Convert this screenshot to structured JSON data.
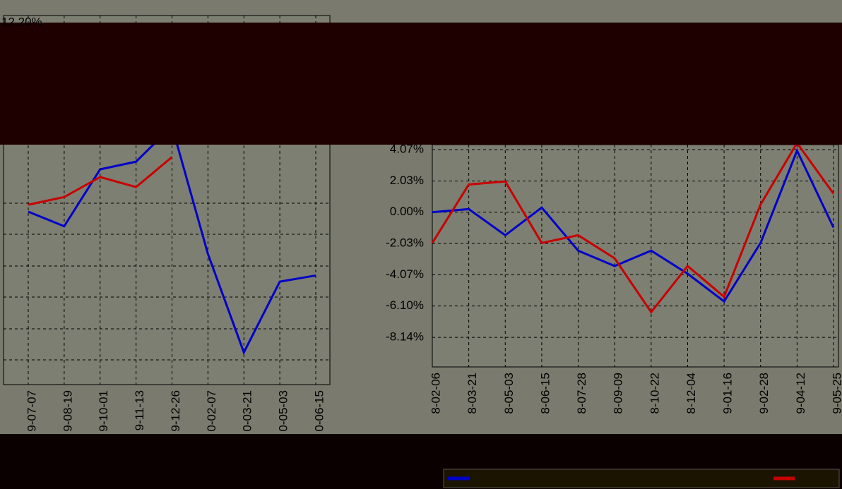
{
  "chart_data": [
    {
      "type": "line",
      "categories": [
        "9-07-07",
        "9-08-19",
        "9-10-01",
        "9-11-13",
        "9-12-26",
        "0-02-07",
        "0-03-21",
        "0-05-03",
        "0-06-15"
      ],
      "series": [
        {
          "color": "#0000c8",
          "values": [
            -0.55,
            -1.5,
            2.2,
            2.7,
            5.0,
            -3.3,
            -9.7,
            -5.1,
            -4.7
          ]
        },
        {
          "color": "#c80000",
          "values": [
            -0.1,
            0.4,
            1.7,
            1.05,
            3.0,
            null,
            null,
            null,
            null
          ]
        }
      ],
      "ylim": [
        -11.79,
        12.2
      ],
      "yticks": [
        {
          "value": 12.2,
          "label": "12.20%"
        }
      ],
      "grid": true
    },
    {
      "type": "line",
      "categories": [
        "8-02-06",
        "8-03-21",
        "8-05-03",
        "8-06-15",
        "8-07-28",
        "8-09-09",
        "8-10-22",
        "8-12-04",
        "9-01-16",
        "9-02-28",
        "9-04-12",
        "9-05-25"
      ],
      "series": [
        {
          "color": "#0000c8",
          "values": [
            0,
            0.2,
            -1.5,
            0.3,
            -2.5,
            -3.5,
            -2.5,
            -4.0,
            -5.8,
            -2.0,
            4.0,
            -1.0
          ]
        },
        {
          "color": "#c80000",
          "values": [
            -2.0,
            1.8,
            2.0,
            -2.0,
            -1.5,
            -3.0,
            -6.5,
            -3.5,
            -5.5,
            0.5,
            4.5,
            1.2
          ]
        }
      ],
      "ylim": [
        -10.06,
        4.39
      ],
      "yticks": [
        {
          "value": 4.07,
          "label": "4.07%"
        },
        {
          "value": 2.03,
          "label": "2.03%"
        },
        {
          "value": 0,
          "label": "0.00%"
        },
        {
          "value": -2.03,
          "label": "-2.03%"
        },
        {
          "value": -4.07,
          "label": "-4.07%"
        },
        {
          "value": -6.1,
          "label": "-6.10%"
        },
        {
          "value": -8.14,
          "label": "-8.14%"
        }
      ],
      "grid": true
    }
  ]
}
